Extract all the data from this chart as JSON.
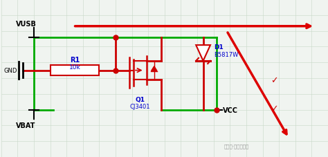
{
  "background_color": "#f0f4f0",
  "grid_color": "#c8d8c8",
  "fig_width": 4.74,
  "fig_height": 2.28,
  "dpi": 100,
  "colors": {
    "green": "#00aa00",
    "dark_red": "#cc0000",
    "blue_text": "#0000cc",
    "black": "#000000",
    "white": "#ffffff",
    "red_arrow": "#dd0000",
    "gray": "#888888"
  },
  "watermark": "公众号·硬件攻城狮",
  "labels": {
    "VUSB": "VUSB",
    "VBAT": "VBAT",
    "GND": "GND",
    "R1": "R1",
    "R1_val": "10k",
    "D1": "D1",
    "D1_val": "B5817W",
    "Q1": "Q1",
    "Q1_val": "CJ3401",
    "VCC": "VCC"
  }
}
